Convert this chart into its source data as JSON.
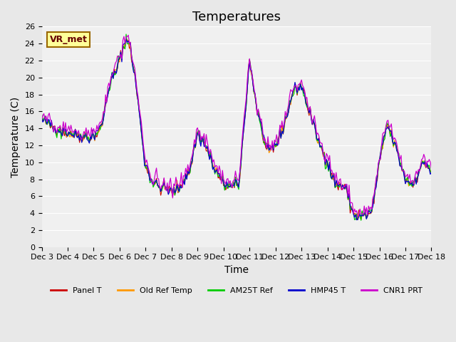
{
  "title": "Temperatures",
  "xlabel": "Time",
  "ylabel": "Temperature (C)",
  "ylim": [
    0,
    26
  ],
  "annotation_label": "VR_met",
  "x_tick_labels": [
    "Dec 3",
    "Dec 4",
    "Dec 5",
    "Dec 6",
    "Dec 7",
    "Dec 8",
    "Dec 9",
    "Dec 10",
    "Dec 11",
    "Dec 12",
    "Dec 13",
    "Dec 14",
    "Dec 15",
    "Dec 16",
    "Dec 17",
    "Dec 18"
  ],
  "series": [
    {
      "name": "Panel T",
      "color": "#cc0000"
    },
    {
      "name": "Old Ref Temp",
      "color": "#ff9900"
    },
    {
      "name": "AM25T Ref",
      "color": "#00cc00"
    },
    {
      "name": "HMP45 T",
      "color": "#0000cc"
    },
    {
      "name": "CNR1 PRT",
      "color": "#cc00cc"
    }
  ],
  "bg_color": "#e8e8e8",
  "plot_bg_color": "#f0f0f0",
  "grid_color": "#ffffff",
  "title_fontsize": 13,
  "axis_fontsize": 10,
  "tick_fontsize": 8
}
